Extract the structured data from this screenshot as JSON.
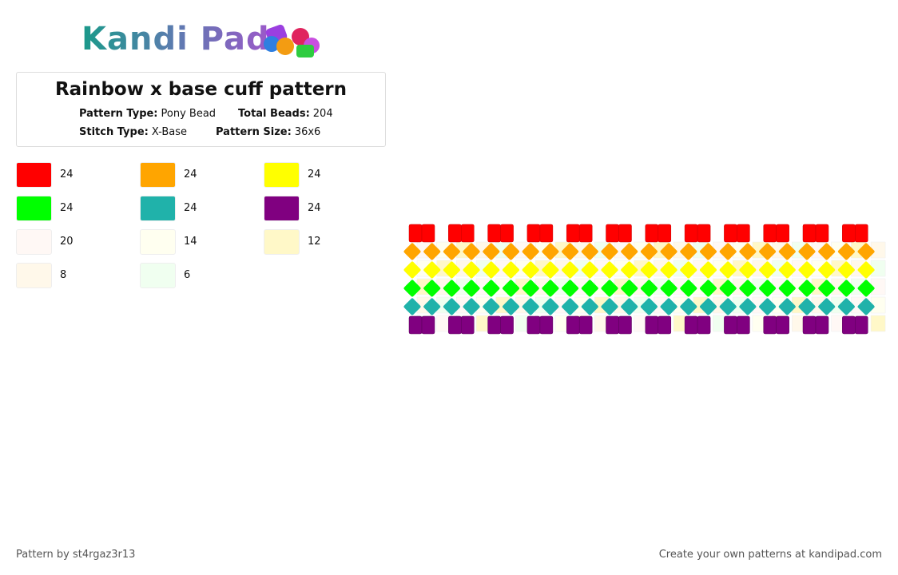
{
  "logo": "Kandi Pad",
  "title": "Rainbow x base cuff pattern",
  "info": [
    {
      "label": "Pattern Type:",
      "value": "Pony Bead"
    },
    {
      "label": "Total Beads:",
      "value": "204"
    },
    {
      "label": "Stitch Type:",
      "value": "X-Base"
    },
    {
      "label": "Pattern Size:",
      "value": "36x6"
    }
  ],
  "palette": [
    {
      "color": "#ff0000",
      "count": 24
    },
    {
      "color": "#ffa500",
      "count": 24
    },
    {
      "color": "#ffff00",
      "count": 24
    },
    {
      "color": "#00ff00",
      "count": 24
    },
    {
      "color": "#20b2aa",
      "count": 24
    },
    {
      "color": "#800080",
      "count": 24
    },
    {
      "color": "#fff8f5",
      "count": 20
    },
    {
      "color": "#fffff0",
      "count": 14
    },
    {
      "color": "#fff8c8",
      "count": 12
    },
    {
      "color": "#fff8ea",
      "count": 8
    },
    {
      "color": "#f0fff0",
      "count": 6
    }
  ],
  "footer_left": "Pattern by st4rgaz3r13",
  "footer_right": "Create your own patterns at kandipad.com"
}
